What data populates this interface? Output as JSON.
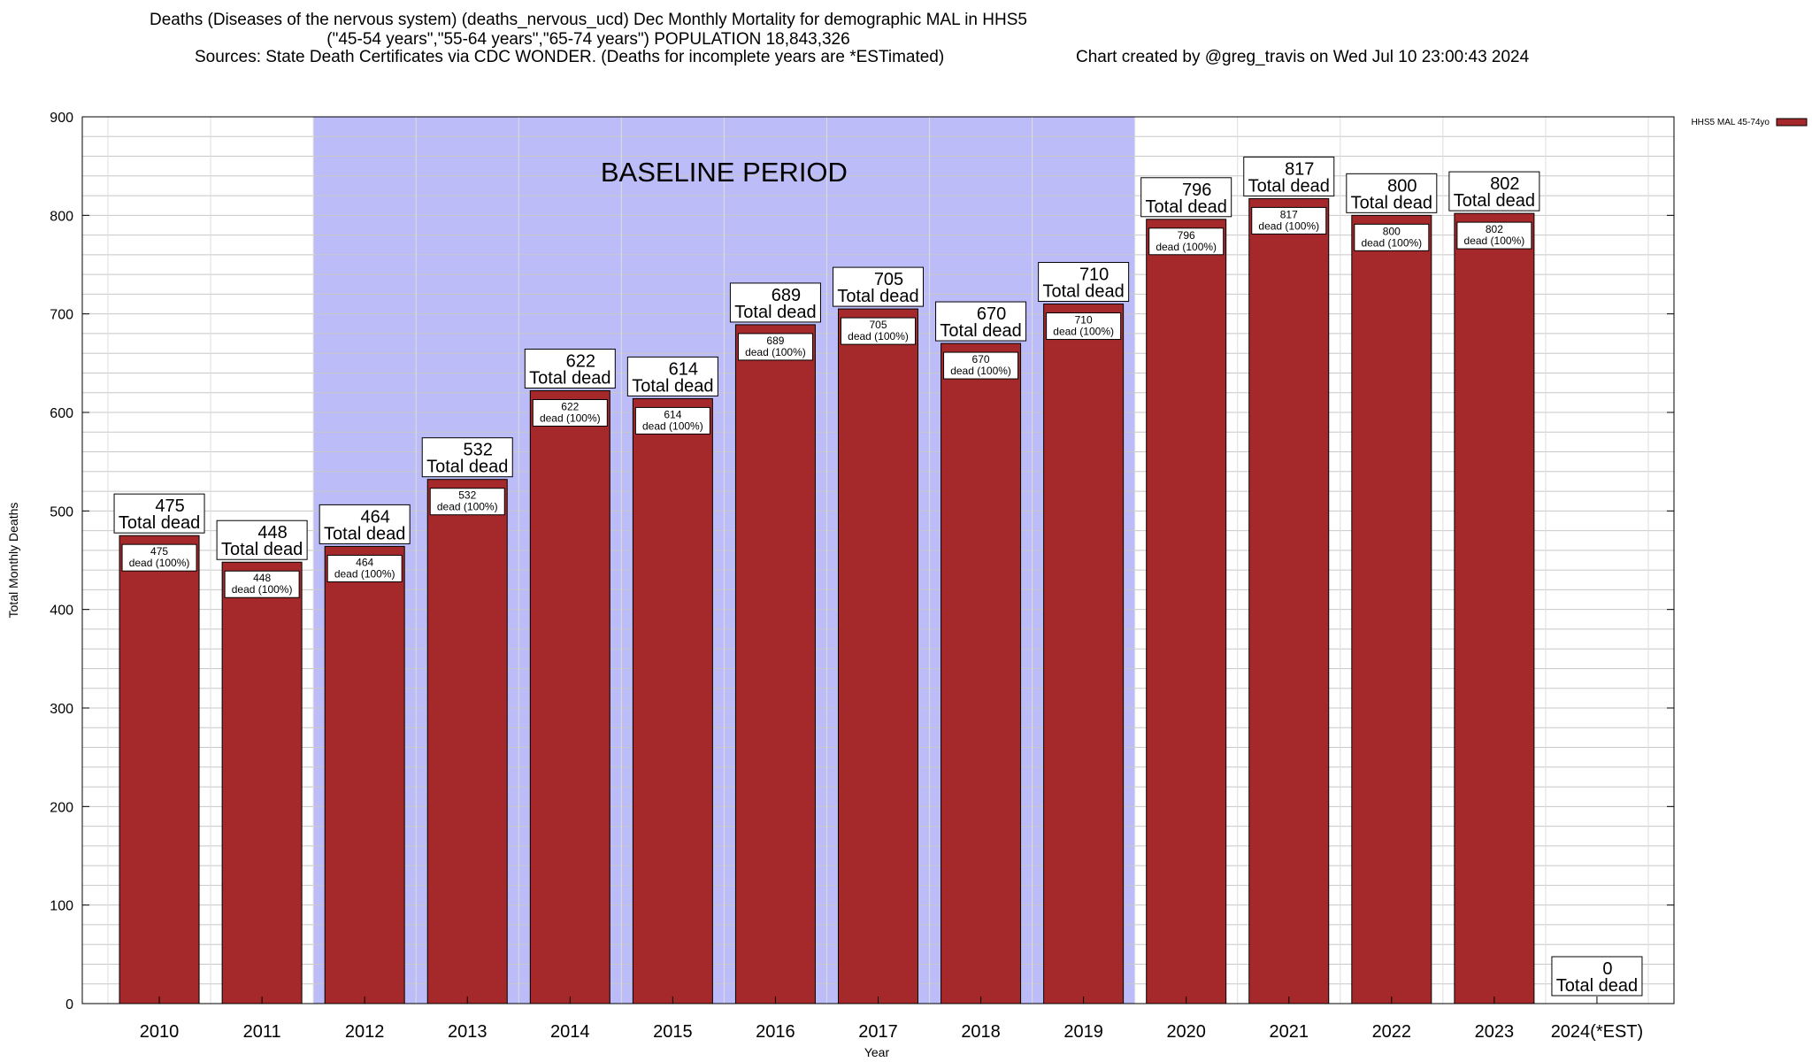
{
  "title_line1": "Deaths (Diseases of the nervous system) (deaths_nervous_ucd) Dec Monthly Mortality for demographic MAL in HHS5",
  "title_line2": "(\"45-54 years\",\"55-64 years\",\"65-74 years\") POPULATION 18,843,326",
  "sources": "Sources: State Death Certificates via CDC WONDER. (Deaths for incomplete years are *ESTimated)",
  "credit": "Chart created by @greg_travis on Wed Jul 10 23:00:43 2024",
  "colors": {
    "bar": "#a5292a",
    "baseline": "#bcbcf8"
  },
  "chart_data": {
    "type": "bar",
    "categories": [
      "2010",
      "2011",
      "2012",
      "2013",
      "2014",
      "2015",
      "2016",
      "2017",
      "2018",
      "2019",
      "2020",
      "2021",
      "2022",
      "2023",
      "2024(*EST)"
    ],
    "series": [
      {
        "name": "HHS5 MAL 45-74yo",
        "values": [
          475,
          448,
          464,
          532,
          622,
          614,
          689,
          705,
          670,
          710,
          796,
          817,
          800,
          802,
          0
        ]
      }
    ],
    "inner_label": "dead (100%)",
    "outer_label": "Total dead",
    "xlabel": "Year",
    "ylabel": "Total Monthly Deaths",
    "ylim": [
      0,
      900
    ],
    "yticks": [
      0,
      100,
      200,
      300,
      400,
      500,
      600,
      700,
      800,
      900
    ],
    "baseline_label": "BASELINE PERIOD",
    "baseline_range": [
      "2012",
      "2019"
    ],
    "legend_position": "top-right",
    "grid": true
  }
}
